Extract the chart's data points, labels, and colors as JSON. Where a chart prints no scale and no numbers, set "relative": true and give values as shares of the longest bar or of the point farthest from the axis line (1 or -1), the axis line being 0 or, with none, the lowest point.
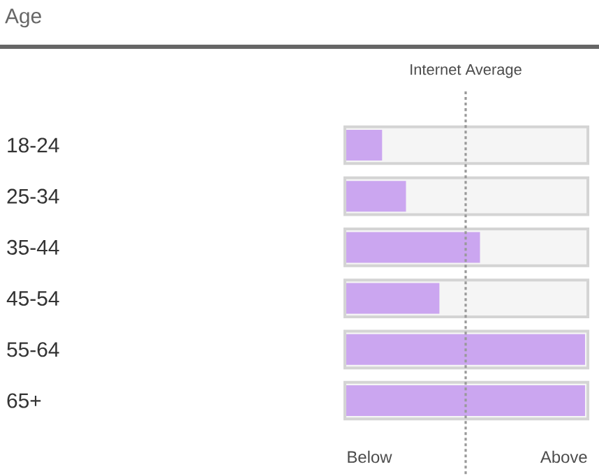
{
  "chart_data": {
    "type": "bar",
    "orientation": "horizontal",
    "relative": true,
    "title": "Age",
    "categories": [
      "18-24",
      "25-34",
      "35-44",
      "45-54",
      "55-64",
      "65+"
    ],
    "values": [
      0.15,
      0.25,
      0.56,
      0.39,
      1,
      1
    ],
    "color": "#cba6f0",
    "ref_lines": [
      {
        "axis": "x",
        "value": 0.5,
        "label": "Internet Average",
        "color": "#999999",
        "line_style": "dotted"
      }
    ],
    "annotations": [
      "Below",
      "Above"
    ]
  }
}
